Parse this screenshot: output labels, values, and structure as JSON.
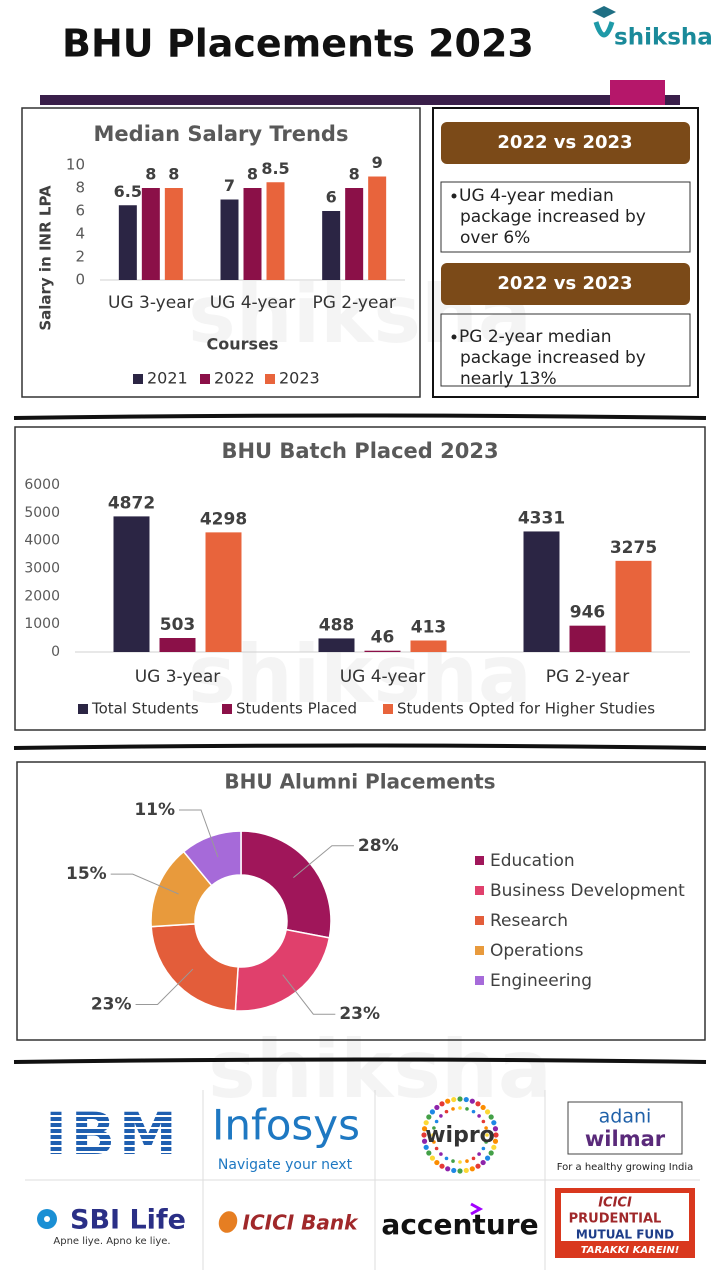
{
  "header": {
    "title": "BHU Placements 2023",
    "brand": "shiksha"
  },
  "chart_data": [
    {
      "type": "bar",
      "title": "Median Salary Trends",
      "x_label": "Courses",
      "y_label": "Salary in INR LPA",
      "categories": [
        "UG 3-year",
        "UG 4-year",
        "PG 2-year"
      ],
      "series": [
        {
          "name": "2021",
          "color": "#2b2544",
          "values": [
            6.5,
            7,
            6
          ]
        },
        {
          "name": "2022",
          "color": "#8b1048",
          "values": [
            8,
            8,
            8
          ]
        },
        {
          "name": "2023",
          "color": "#e8643c",
          "values": [
            8,
            8.5,
            9
          ]
        }
      ],
      "ylim": [
        0,
        10
      ],
      "yticks": [
        0,
        2,
        4,
        6,
        8,
        10
      ]
    },
    {
      "type": "bar",
      "title": "BHU Batch Placed 2023",
      "categories": [
        "UG 3-year",
        "UG 4-year",
        "PG 2-year"
      ],
      "series": [
        {
          "name": "Total Students",
          "color": "#2b2544",
          "values": [
            4872,
            488,
            4331
          ]
        },
        {
          "name": "Students Placed",
          "color": "#8b1048",
          "values": [
            503,
            46,
            946
          ]
        },
        {
          "name": "Students Opted for Higher Studies",
          "color": "#e8643c",
          "values": [
            4298,
            413,
            3275
          ]
        }
      ],
      "ylim": [
        0,
        6000
      ],
      "yticks": [
        0,
        1000,
        2000,
        3000,
        4000,
        5000,
        6000
      ]
    },
    {
      "type": "pie",
      "title": "BHU Alumni Placements",
      "categories": [
        "Education",
        "Business Development",
        "Research",
        "Operations",
        "Engineering"
      ],
      "values": [
        28,
        23,
        23,
        15,
        11
      ],
      "value_labels": [
        "28%",
        "23%",
        "23%",
        "15%",
        "11%"
      ],
      "colors": [
        "#a0165a",
        "#e0406c",
        "#e35d3a",
        "#e89a3c",
        "#a66ad9"
      ]
    }
  ],
  "info_boxes": [
    {
      "heading": "2022 vs 2023",
      "lines": [
        "UG 4-year median",
        "package increased by",
        "over 6%"
      ]
    },
    {
      "heading": "2022 vs 2023",
      "lines": [
        "PG 2-year median",
        "package increased by",
        "nearly 13%"
      ]
    }
  ],
  "recruiters": [
    {
      "lines": [
        "IBM"
      ]
    },
    {
      "lines": [
        "Infosys",
        "Navigate your next"
      ]
    },
    {
      "lines": [
        "wipro"
      ]
    },
    {
      "lines": [
        "adani",
        "wilmar",
        "For a healthy growing India"
      ]
    },
    {
      "lines": [
        "SBI Life",
        "Apne liye. Apno ke liye."
      ]
    },
    {
      "lines": [
        "ICICI Bank"
      ]
    },
    {
      "lines": [
        "accenture"
      ]
    },
    {
      "lines": [
        "ICICI",
        "PRUDENTIAL",
        "MUTUAL FUND",
        "TARAKKI KAREIN!"
      ]
    }
  ]
}
